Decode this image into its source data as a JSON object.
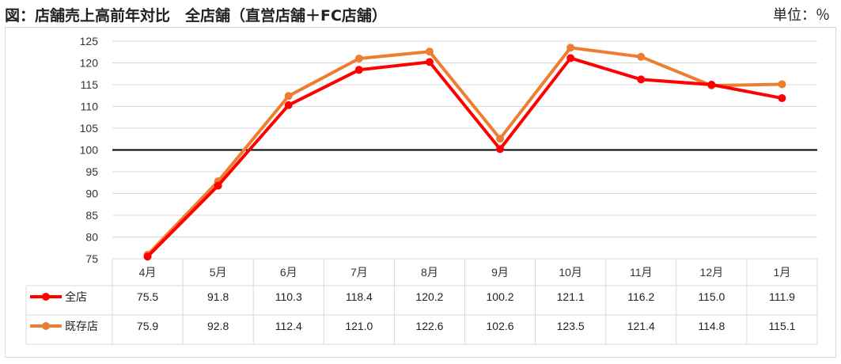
{
  "header": {
    "title": "図：店舗売上高前年対比　全店舗（直営店舗＋FC店舗）",
    "unit": "単位：％"
  },
  "chart_data": {
    "type": "line",
    "categories": [
      "4月",
      "5月",
      "6月",
      "7月",
      "8月",
      "9月",
      "10月",
      "11月",
      "12月",
      "1月"
    ],
    "ylim": [
      75,
      125
    ],
    "yticks": [
      75,
      80,
      85,
      90,
      95,
      100,
      105,
      110,
      115,
      120,
      125
    ],
    "reference_line": 100,
    "grid": true,
    "series": [
      {
        "name": "全店",
        "color": "#ff0000",
        "values": [
          75.5,
          91.8,
          110.3,
          118.4,
          120.2,
          100.2,
          121.1,
          116.2,
          115.0,
          111.9
        ],
        "labels": [
          "75.5",
          "91.8",
          "110.3",
          "118.4",
          "120.2",
          "100.2",
          "121.1",
          "116.2",
          "115.0",
          "111.9"
        ]
      },
      {
        "name": "既存店",
        "color": "#ed7d31",
        "values": [
          75.9,
          92.8,
          112.4,
          121.0,
          122.6,
          102.6,
          123.5,
          121.4,
          114.8,
          115.1
        ],
        "labels": [
          "75.9",
          "92.8",
          "112.4",
          "121.0",
          "122.6",
          "102.6",
          "123.5",
          "121.4",
          "114.8",
          "115.1"
        ]
      }
    ]
  }
}
